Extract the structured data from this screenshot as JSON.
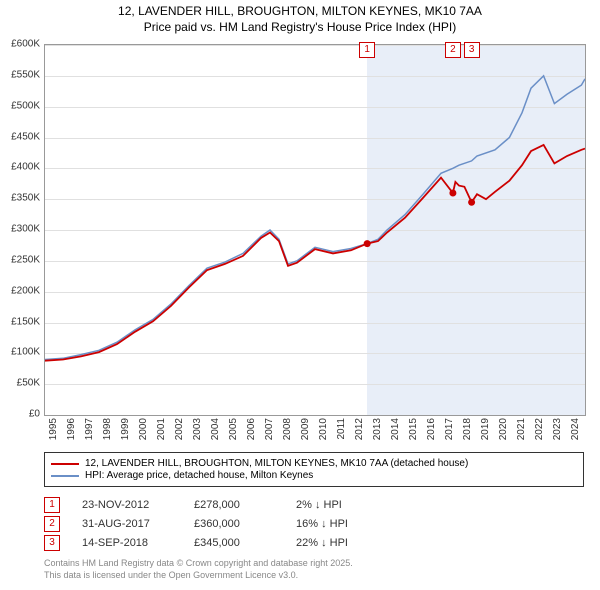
{
  "title_line1": "12, LAVENDER HILL, BROUGHTON, MILTON KEYNES, MK10 7AA",
  "title_line2": "Price paid vs. HM Land Registry's House Price Index (HPI)",
  "chart": {
    "type": "line",
    "background_color": "#ffffff",
    "grid_color": "#e0e0e0",
    "shade_color": "#e8eef8",
    "x_min": 1995,
    "x_max": 2025,
    "x_ticks": [
      1995,
      1996,
      1997,
      1998,
      1999,
      2000,
      2001,
      2002,
      2003,
      2004,
      2005,
      2006,
      2007,
      2008,
      2009,
      2010,
      2011,
      2012,
      2013,
      2014,
      2015,
      2016,
      2017,
      2018,
      2019,
      2020,
      2021,
      2022,
      2023,
      2024
    ],
    "y_min": 0,
    "y_max": 600000,
    "y_tick_step": 50000,
    "y_tick_labels": [
      "£0",
      "£50K",
      "£100K",
      "£150K",
      "£200K",
      "£250K",
      "£300K",
      "£350K",
      "£400K",
      "£450K",
      "£500K",
      "£550K",
      "£600K"
    ],
    "series": [
      {
        "name": "hpi",
        "color": "#6a8fc7",
        "width": 1.5,
        "points": [
          [
            1995,
            90
          ],
          [
            1996,
            92
          ],
          [
            1997,
            98
          ],
          [
            1998,
            105
          ],
          [
            1999,
            118
          ],
          [
            2000,
            138
          ],
          [
            2001,
            155
          ],
          [
            2002,
            180
          ],
          [
            2003,
            210
          ],
          [
            2004,
            238
          ],
          [
            2005,
            248
          ],
          [
            2006,
            262
          ],
          [
            2007,
            290
          ],
          [
            2007.5,
            300
          ],
          [
            2008,
            285
          ],
          [
            2008.5,
            245
          ],
          [
            2009,
            250
          ],
          [
            2010,
            272
          ],
          [
            2011,
            265
          ],
          [
            2012,
            270
          ],
          [
            2012.9,
            278
          ],
          [
            2013.5,
            285
          ],
          [
            2014,
            300
          ],
          [
            2015,
            325
          ],
          [
            2016,
            358
          ],
          [
            2017,
            392
          ],
          [
            2017.66,
            400
          ],
          [
            2018,
            405
          ],
          [
            2018.7,
            412
          ],
          [
            2019,
            420
          ],
          [
            2020,
            430
          ],
          [
            2020.8,
            450
          ],
          [
            2021.5,
            490
          ],
          [
            2022,
            530
          ],
          [
            2022.7,
            550
          ],
          [
            2023.3,
            505
          ],
          [
            2024,
            520
          ],
          [
            2024.8,
            535
          ],
          [
            2025,
            545
          ]
        ]
      },
      {
        "name": "price_paid",
        "color": "#cc0000",
        "width": 1.8,
        "points": [
          [
            1995,
            88
          ],
          [
            1996,
            90
          ],
          [
            1997,
            95
          ],
          [
            1998,
            102
          ],
          [
            1999,
            115
          ],
          [
            2000,
            135
          ],
          [
            2001,
            152
          ],
          [
            2002,
            177
          ],
          [
            2003,
            207
          ],
          [
            2004,
            235
          ],
          [
            2005,
            245
          ],
          [
            2006,
            258
          ],
          [
            2007,
            287
          ],
          [
            2007.5,
            296
          ],
          [
            2008,
            282
          ],
          [
            2008.5,
            242
          ],
          [
            2009,
            247
          ],
          [
            2010,
            269
          ],
          [
            2011,
            262
          ],
          [
            2012,
            267
          ],
          [
            2012.9,
            278
          ],
          [
            2013.5,
            282
          ],
          [
            2014,
            296
          ],
          [
            2015,
            320
          ],
          [
            2016,
            352
          ],
          [
            2017,
            385
          ],
          [
            2017.66,
            360
          ],
          [
            2017.8,
            378
          ],
          [
            2018,
            372
          ],
          [
            2018.3,
            370
          ],
          [
            2018.7,
            345
          ],
          [
            2019,
            358
          ],
          [
            2019.5,
            350
          ],
          [
            2020,
            362
          ],
          [
            2020.8,
            380
          ],
          [
            2021.5,
            405
          ],
          [
            2022,
            428
          ],
          [
            2022.7,
            438
          ],
          [
            2023.3,
            408
          ],
          [
            2024,
            420
          ],
          [
            2024.8,
            430
          ],
          [
            2025,
            432
          ]
        ]
      }
    ],
    "sale_points": [
      {
        "x": 2012.9,
        "y": 278,
        "color": "#cc0000"
      },
      {
        "x": 2017.66,
        "y": 360,
        "color": "#cc0000"
      },
      {
        "x": 2018.7,
        "y": 345,
        "color": "#cc0000"
      }
    ],
    "marker_boxes": [
      {
        "n": "1",
        "x": 2012.9
      },
      {
        "n": "2",
        "x": 2017.66
      },
      {
        "n": "3",
        "x": 2018.7
      }
    ]
  },
  "legend": {
    "items": [
      {
        "color": "#cc0000",
        "label": "12, LAVENDER HILL, BROUGHTON, MILTON KEYNES, MK10 7AA (detached house)"
      },
      {
        "color": "#6a8fc7",
        "label": "HPI: Average price, detached house, Milton Keynes"
      }
    ]
  },
  "sales": [
    {
      "n": "1",
      "date": "23-NOV-2012",
      "price": "£278,000",
      "diff": "2% ↓ HPI"
    },
    {
      "n": "2",
      "date": "31-AUG-2017",
      "price": "£360,000",
      "diff": "16% ↓ HPI"
    },
    {
      "n": "3",
      "date": "14-SEP-2018",
      "price": "£345,000",
      "diff": "22% ↓ HPI"
    }
  ],
  "footer_line1": "Contains HM Land Registry data © Crown copyright and database right 2025.",
  "footer_line2": "This data is licensed under the Open Government Licence v3.0."
}
